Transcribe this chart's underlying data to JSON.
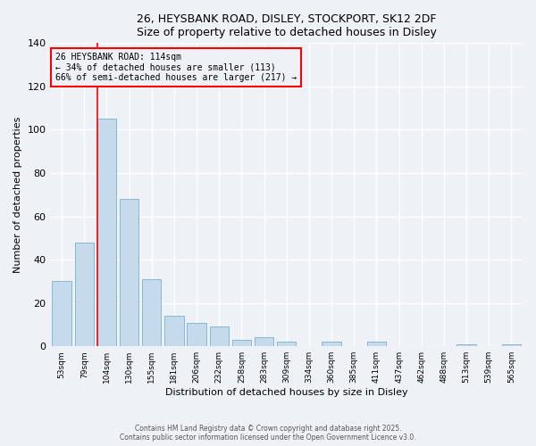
{
  "title1": "26, HEYSBANK ROAD, DISLEY, STOCKPORT, SK12 2DF",
  "title2": "Size of property relative to detached houses in Disley",
  "xlabel": "Distribution of detached houses by size in Disley",
  "ylabel": "Number of detached properties",
  "categories": [
    "53sqm",
    "79sqm",
    "104sqm",
    "130sqm",
    "155sqm",
    "181sqm",
    "206sqm",
    "232sqm",
    "258sqm",
    "283sqm",
    "309sqm",
    "334sqm",
    "360sqm",
    "385sqm",
    "411sqm",
    "437sqm",
    "462sqm",
    "488sqm",
    "513sqm",
    "539sqm",
    "565sqm"
  ],
  "values": [
    30,
    48,
    105,
    68,
    31,
    14,
    11,
    9,
    3,
    4,
    2,
    0,
    2,
    0,
    2,
    0,
    0,
    0,
    1,
    0,
    1
  ],
  "bar_color": "#c5daea",
  "bar_edge_color": "#7ab0ce",
  "redline_index": 2,
  "annotation_title": "26 HEYSBANK ROAD: 114sqm",
  "annotation_line1": "← 34% of detached houses are smaller (113)",
  "annotation_line2": "66% of semi-detached houses are larger (217) →",
  "ylim": [
    0,
    140
  ],
  "yticks": [
    0,
    20,
    40,
    60,
    80,
    100,
    120,
    140
  ],
  "footer1": "Contains HM Land Registry data © Crown copyright and database right 2025.",
  "footer2": "Contains public sector information licensed under the Open Government Licence v3.0.",
  "bg_color": "#eef2f7"
}
